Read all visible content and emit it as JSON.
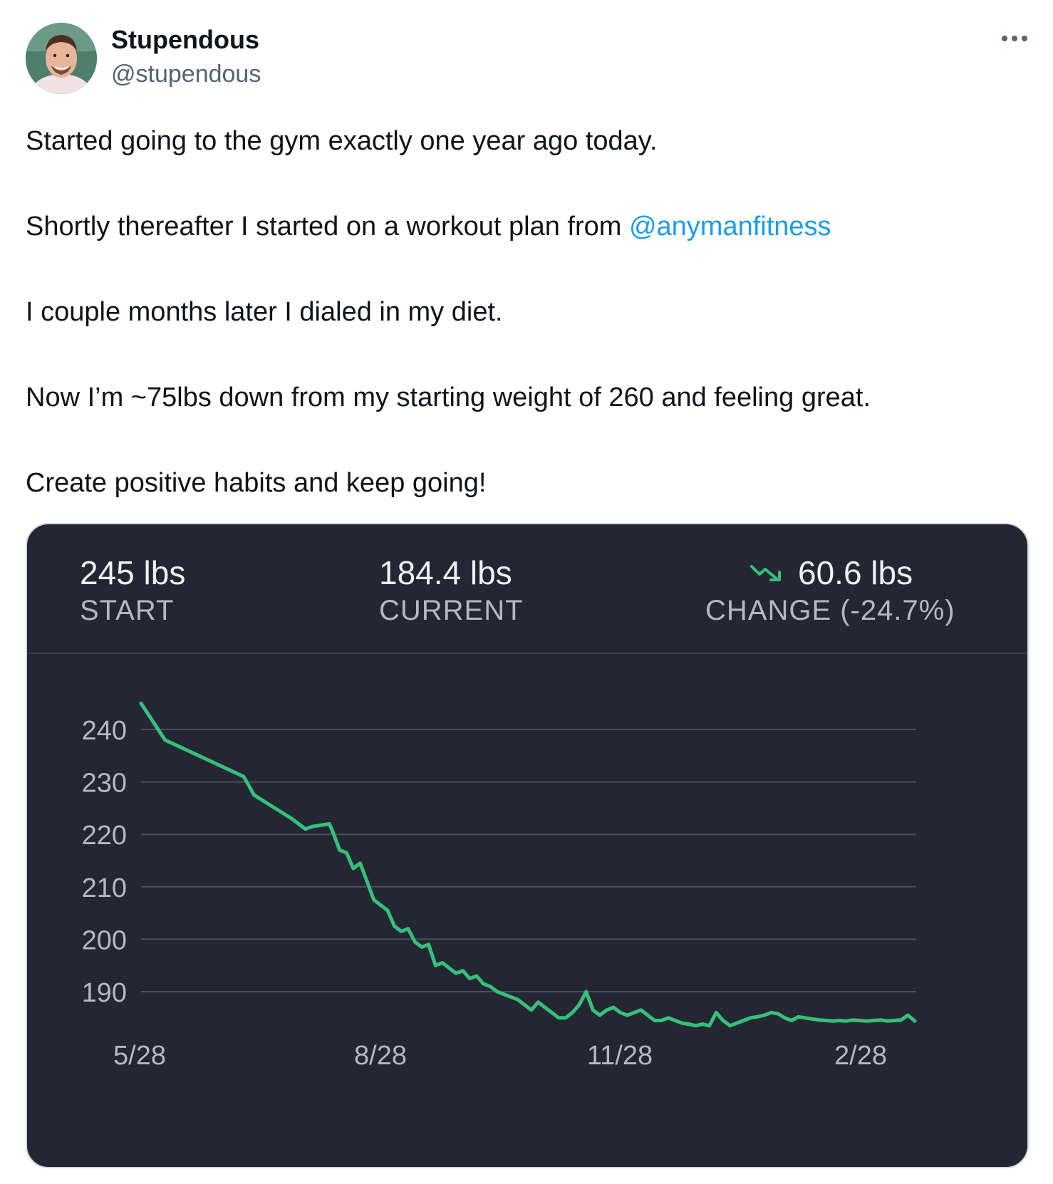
{
  "author": {
    "display_name": "Stupendous",
    "handle": "@stupendous",
    "avatar_icon": "profile-photo"
  },
  "more_icon": "more-horizontal-icon",
  "tweet": {
    "line1": "Started going to the gym exactly one year ago today.",
    "line2_prefix": "Shortly thereafter I started on a workout plan from ",
    "line2_mention": "@anymanfitness",
    "line3": "I couple months later I dialed in my diet.",
    "line4": "Now I’m ~75lbs down from my starting weight of 260 and feeling great.",
    "line5": "Create positive habits and keep going!"
  },
  "colors": {
    "mention": "#1d9bf0",
    "card_bg": "#242733",
    "line": "#36c07a"
  },
  "stats": {
    "start_value": "245 lbs",
    "start_label": "START",
    "current_value": "184.4 lbs",
    "current_label": "CURRENT",
    "change_value": "60.6 lbs",
    "change_label": "CHANGE (-24.7%)",
    "change_icon": "trending-down-icon"
  },
  "chart_data": {
    "type": "line",
    "x_tick_labels": [
      "5/28",
      "8/28",
      "11/28",
      "2/28"
    ],
    "y_ticks": [
      190,
      200,
      210,
      220,
      230,
      240
    ],
    "ylim": [
      183,
      246
    ],
    "grid": true,
    "series": [
      {
        "x": [
          0,
          3.5,
          15,
          16.5,
          22,
          24,
          25,
          27.5,
          28,
          29,
          30,
          31,
          32,
          33,
          34,
          35,
          36,
          37,
          38,
          39,
          40,
          41,
          42,
          43,
          44,
          45,
          46,
          47,
          48,
          49,
          50,
          51,
          52,
          53,
          54,
          55,
          56,
          57,
          58,
          59,
          60,
          61,
          62,
          63,
          64,
          65,
          66,
          67,
          68,
          69,
          70,
          71,
          72,
          73,
          74,
          75,
          76,
          77,
          78,
          79,
          80,
          81,
          82,
          83,
          84,
          85,
          86,
          87,
          88,
          89,
          90,
          91,
          92,
          93,
          94,
          95,
          96,
          97,
          98,
          99,
          100,
          101,
          102,
          103,
          104,
          105,
          106,
          107,
          108,
          109,
          110,
          111,
          112,
          113
        ],
        "y": [
          245,
          238,
          231,
          227.5,
          223,
          221,
          221.5,
          222,
          220.5,
          217,
          216.5,
          213.5,
          214.5,
          211,
          207.5,
          206.5,
          205.5,
          202.5,
          201.5,
          202,
          199.5,
          198.5,
          199,
          195,
          195.5,
          194.5,
          193.5,
          194,
          192.5,
          193,
          191.5,
          191,
          190,
          189.5,
          189,
          188.5,
          187.5,
          186.5,
          188,
          187,
          186,
          185,
          185,
          186,
          187.5,
          190,
          186.5,
          185.5,
          186.5,
          187,
          186,
          185.5,
          186,
          186.5,
          185.5,
          184.5,
          184.5,
          185,
          184.5,
          184,
          183.8,
          183.5,
          183.8,
          183.5,
          186,
          184.5,
          183.5,
          184,
          184.5,
          185,
          185.2,
          185.5,
          186,
          185.8,
          185,
          184.5,
          185.2,
          185,
          184.8,
          184.6,
          184.5,
          184.4,
          184.5,
          184.4,
          184.6,
          184.5,
          184.4,
          184.5,
          184.6,
          184.4,
          184.5,
          184.6,
          185.5,
          184.4
        ]
      }
    ]
  }
}
